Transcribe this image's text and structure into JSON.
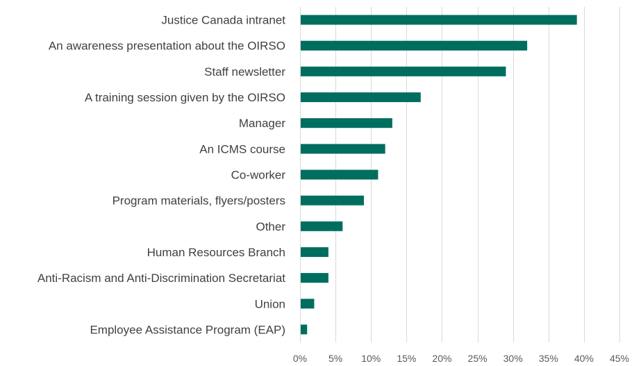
{
  "chart_data": {
    "type": "bar",
    "orientation": "horizontal",
    "title": "",
    "xlabel": "",
    "ylabel": "",
    "categories": [
      "Justice Canada intranet",
      "An awareness presentation about the OIRSO",
      "Staff newsletter",
      "A training session given by the OIRSO",
      "Manager",
      "An ICMS course",
      "Co-worker",
      "Program materials, flyers/posters",
      "Other",
      "Human Resources Branch",
      "Anti-Racism and Anti-Discrimination Secretariat",
      "Union",
      "Employee Assistance Program (EAP)"
    ],
    "values": [
      39,
      32,
      29,
      17,
      13,
      12,
      11,
      9,
      6,
      4,
      4,
      2,
      1
    ],
    "xlim": [
      0,
      45
    ],
    "x_ticks": [
      0,
      5,
      10,
      15,
      20,
      25,
      30,
      35,
      40,
      45
    ],
    "x_tick_labels": [
      "0%",
      "5%",
      "10%",
      "15%",
      "20%",
      "25%",
      "30%",
      "35%",
      "40%",
      "45%"
    ],
    "grid": true,
    "legend": "none",
    "bar_color": "#006e5f"
  }
}
